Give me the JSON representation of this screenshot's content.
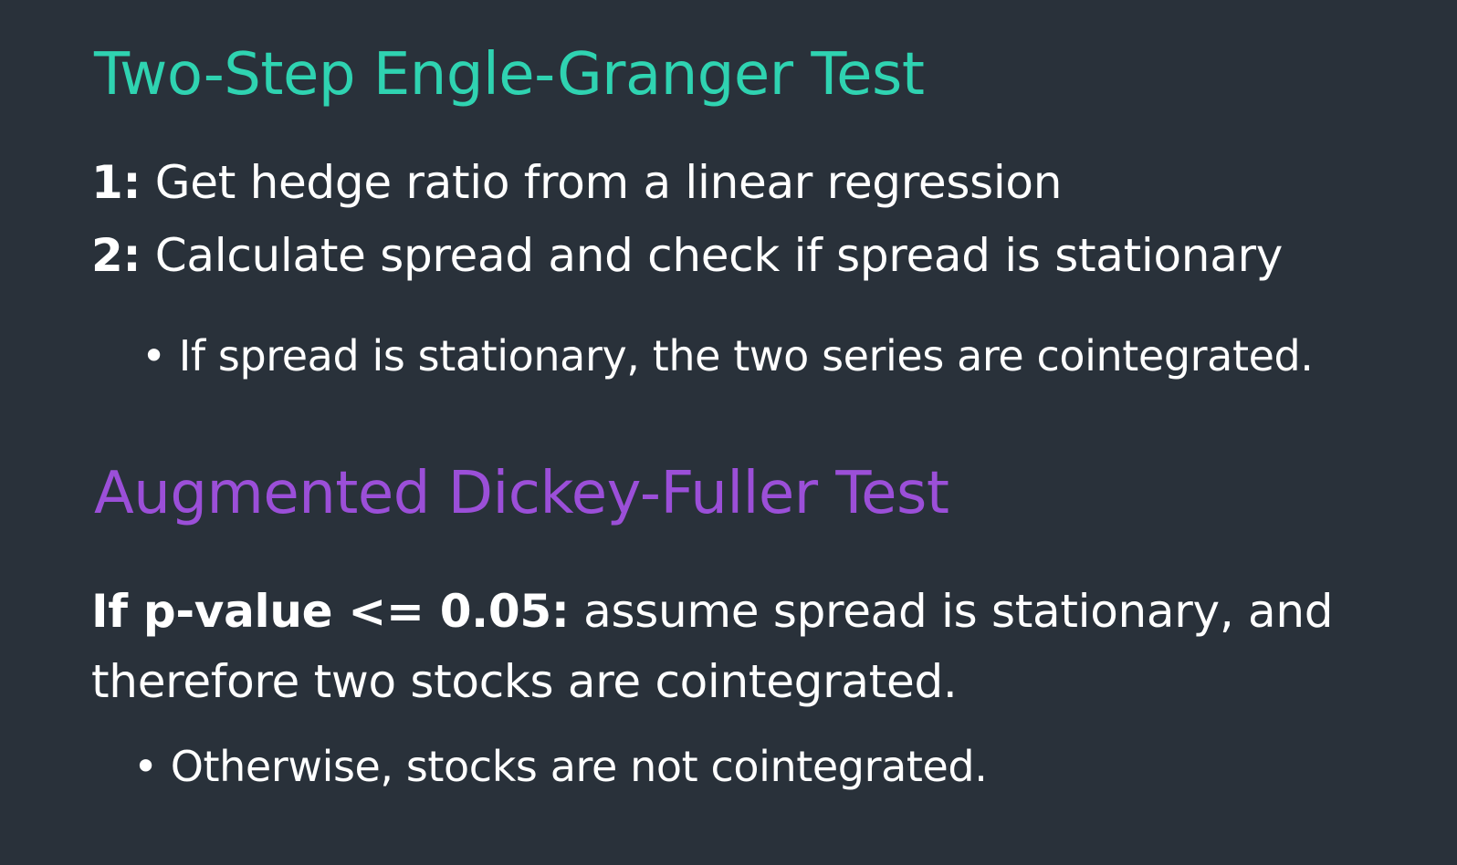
{
  "section_1": {
    "title": "Two-Step Engle-Granger Test",
    "steps": [
      {
        "label": "1:",
        "text": "Get hedge ratio from a linear regression"
      },
      {
        "label": "2:",
        "text": "Calculate spread and check if spread is stationary"
      }
    ],
    "bullet": "If spread is stationary, the two series are cointegrated."
  },
  "section_2": {
    "title": "Augmented Dickey-Fuller Test",
    "condition_label": "If p-value <= 0.05:",
    "condition_text": "assume spread is stationary, and therefore two stocks are cointegrated.",
    "bullet": "Otherwise, stocks are not cointegrated."
  },
  "bullet_glyph": "•",
  "colors": {
    "background": "#29313a",
    "heading_1": "#2fd3b1",
    "heading_2": "#9b4fd8",
    "text": "#ffffff"
  }
}
